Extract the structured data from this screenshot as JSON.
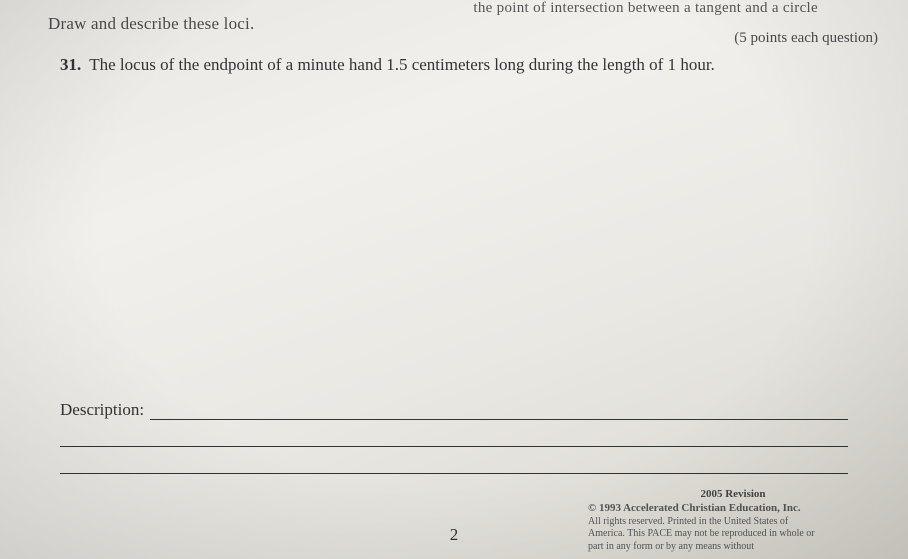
{
  "fragment_top": "the point of intersection between a tangent and a circle",
  "instruction": "Draw and describe these loci.",
  "points_note": "(5 points each question)",
  "question": {
    "number": "31.",
    "text": "The locus of the endpoint of a minute hand 1.5 centimeters long during the length of 1 hour."
  },
  "description_label": "Description:",
  "page_number": "2",
  "footer": {
    "revision": "2005 Revision",
    "line1": "© 1993 Accelerated Christian Education, Inc.",
    "line2": "All rights reserved. Printed in the United States of",
    "line3": "America. This PACE may not be reproduced in whole or",
    "line4": "part in any form or by any means without"
  },
  "colors": {
    "text": "#333333",
    "muted": "#555555",
    "line": "#333333",
    "bg_light": "#f2f0ec",
    "bg_dark": "#d8d5ce"
  },
  "typography": {
    "body_fontsize_pt": 13,
    "label_fontsize_pt": 13,
    "footer_fontsize_pt": 8
  }
}
